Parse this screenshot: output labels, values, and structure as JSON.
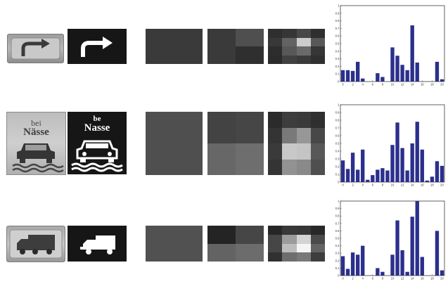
{
  "rows": [
    {
      "id": "arrow",
      "sign_text_lines": [],
      "level1": [
        [
          0.17
        ]
      ],
      "level2": [
        [
          0.17,
          0.26
        ],
        [
          0.17,
          0.12
        ]
      ],
      "level3": [
        [
          0.12,
          0.15,
          0.23,
          0.12
        ],
        [
          0.16,
          0.35,
          0.82,
          0.3
        ],
        [
          0.11,
          0.3,
          0.38,
          0.15
        ],
        [
          0.1,
          0.2,
          0.17,
          0.12
        ]
      ],
      "histogram": [
        0.15,
        0.15,
        0.14,
        0.26,
        0.04,
        0,
        0,
        0.11,
        0.06,
        0,
        0.45,
        0.34,
        0.22,
        0.15,
        0.74,
        0.25,
        0,
        0,
        0,
        0.26,
        0.03
      ]
    },
    {
      "id": "nasse",
      "sign_text_lines": [
        "bei",
        "Nässe"
      ],
      "thumb_text_lines": [
        "be",
        "Nasse"
      ],
      "level1": [
        [
          0.26
        ]
      ],
      "level2": [
        [
          0.21,
          0.22
        ],
        [
          0.37,
          0.4
        ]
      ],
      "level3": [
        [
          0.1,
          0.18,
          0.17,
          0.12
        ],
        [
          0.14,
          0.45,
          0.58,
          0.23
        ],
        [
          0.17,
          0.8,
          0.78,
          0.3
        ],
        [
          0.14,
          0.56,
          0.52,
          0.26
        ]
      ],
      "histogram": [
        0.28,
        0.17,
        0.38,
        0.16,
        0.42,
        0.03,
        0.09,
        0.16,
        0.18,
        0.15,
        0.48,
        0.77,
        0.44,
        0.15,
        0.5,
        0.78,
        0.42,
        0.02,
        0.07,
        0.27,
        0.21
      ]
    },
    {
      "id": "truck",
      "sign_text_lines": [],
      "level1": [
        [
          0.27
        ]
      ],
      "level2": [
        [
          0.07,
          0.22
        ],
        [
          0.35,
          0.39
        ]
      ],
      "level3": [
        [
          0.08,
          0.16,
          0.15,
          0.09
        ],
        [
          0.22,
          0.6,
          0.85,
          0.24
        ],
        [
          0.22,
          0.75,
          1.0,
          0.35
        ],
        [
          0.13,
          0.4,
          0.45,
          0.18
        ]
      ],
      "histogram": [
        0.26,
        0.09,
        0.31,
        0.28,
        0.4,
        0,
        0,
        0.1,
        0.05,
        0,
        0.28,
        0.74,
        0.34,
        0.05,
        0.79,
        1.0,
        0.25,
        0,
        0,
        0.6,
        0.07
      ]
    }
  ],
  "hist_style": {
    "bar_color": "#2b2f8c",
    "yticks": [
      "0",
      "0.1",
      "0.2",
      "0.3",
      "0.4",
      "0.5",
      "0.6",
      "0.7",
      "0.8",
      "0.9",
      "1"
    ],
    "xticks": [
      "0",
      "2",
      "4",
      "6",
      "8",
      "10",
      "12",
      "14",
      "16",
      "18",
      "20"
    ]
  }
}
